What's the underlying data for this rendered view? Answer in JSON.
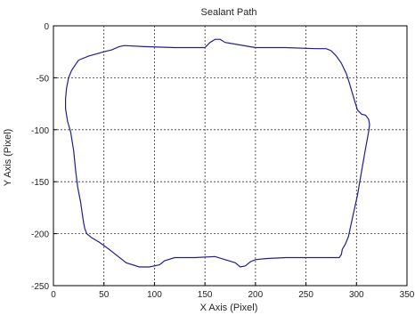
{
  "chart_data": {
    "type": "line",
    "title": "Sealant Path",
    "xlabel": "X Axis (Pixel)",
    "ylabel": "Y Axis (Pixel)",
    "xlim": [
      0,
      350
    ],
    "ylim": [
      -250,
      0
    ],
    "xticks": [
      0,
      50,
      100,
      150,
      200,
      250,
      300,
      350
    ],
    "yticks": [
      0,
      -50,
      -100,
      -150,
      -200,
      -250
    ],
    "grid": true,
    "line_color": "#1f1f8f",
    "series": [
      {
        "x": [
          25,
          35,
          50,
          58,
          65,
          70,
          90,
          120,
          150,
          155,
          160,
          165,
          170,
          200,
          230,
          260,
          270,
          275,
          280,
          285,
          290,
          293,
          296,
          299,
          301,
          305,
          309,
          312,
          313,
          312,
          309,
          305,
          301,
          296,
          292,
          289,
          286,
          285,
          283,
          270,
          250,
          230,
          210,
          200,
          195,
          190,
          185,
          180,
          160,
          140,
          120,
          110,
          105,
          95,
          85,
          72,
          55,
          45,
          38,
          33,
          31,
          30,
          29,
          27,
          24,
          22,
          20,
          17,
          14,
          12,
          12,
          13,
          15,
          18,
          22,
          25
        ],
        "y": [
          -33,
          -29,
          -25,
          -23,
          -20,
          -19,
          -20,
          -21,
          -21,
          -16,
          -13,
          -13,
          -16,
          -21,
          -21,
          -22,
          -22,
          -24,
          -29,
          -36,
          -46,
          -55,
          -65,
          -75,
          -81,
          -85,
          -86,
          -90,
          -95,
          -102,
          -118,
          -140,
          -163,
          -185,
          -203,
          -210,
          -215,
          -220,
          -223,
          -223,
          -223,
          -223,
          -224,
          -225,
          -227,
          -231,
          -232,
          -228,
          -222,
          -223,
          -223,
          -226,
          -230,
          -232,
          -232,
          -228,
          -215,
          -208,
          -204,
          -200,
          -195,
          -190,
          -184,
          -170,
          -155,
          -140,
          -120,
          -102,
          -92,
          -80,
          -70,
          -60,
          -50,
          -43,
          -37,
          -33
        ]
      }
    ]
  }
}
